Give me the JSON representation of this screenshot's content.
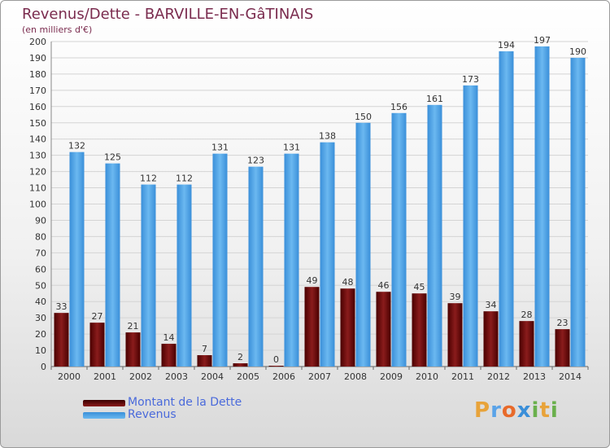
{
  "title": "Revenus/Dette - BARVILLE-EN-GâTINAIS",
  "subtitle": "(en milliers d'€)",
  "legend": [
    "Montant de la Dette",
    "Revenus"
  ],
  "logo": {
    "text": "Proxiti",
    "letter_colors": [
      "#e8a33a",
      "#5aa3e8",
      "#e86a2a",
      "#3a8fd9",
      "#6ab04c",
      "#e8a33a",
      "#6ab04c"
    ]
  },
  "colors": {
    "dette": "#6e0f12",
    "revenus": "#4ea6ea",
    "text": "#7a2b4e",
    "axis_text": "#333333"
  },
  "chart_data": {
    "type": "bar",
    "categories": [
      "2000",
      "2001",
      "2002",
      "2003",
      "2004",
      "2005",
      "2006",
      "2007",
      "2008",
      "2009",
      "2010",
      "2011",
      "2012",
      "2013",
      "2014"
    ],
    "series": [
      {
        "name": "Montant de la Dette",
        "values": [
          33,
          27,
          21,
          14,
          7,
          2,
          0,
          49,
          48,
          46,
          45,
          39,
          34,
          28,
          23
        ]
      },
      {
        "name": "Revenus",
        "values": [
          132,
          125,
          112,
          112,
          131,
          123,
          131,
          138,
          150,
          156,
          161,
          173,
          194,
          197,
          190
        ]
      }
    ],
    "ylim": [
      0,
      200
    ],
    "y_ticks": [
      0,
      10,
      20,
      30,
      40,
      50,
      60,
      70,
      80,
      90,
      100,
      110,
      120,
      130,
      140,
      150,
      160,
      170,
      180,
      190,
      200
    ],
    "grid": true,
    "legend_position": "bottom-left"
  }
}
